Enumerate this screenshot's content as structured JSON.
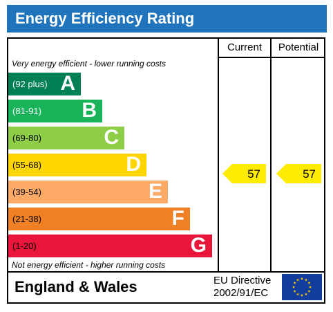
{
  "title": "Energy Efficiency Rating",
  "columns": {
    "current": "Current",
    "potential": "Potential"
  },
  "notes": {
    "top": "Very energy efficient - lower running costs",
    "bottom": "Not energy efficient - higher running costs"
  },
  "bands": [
    {
      "range": "(92 plus)",
      "letter": "A",
      "color": "#008054"
    },
    {
      "range": "(81-91)",
      "letter": "B",
      "color": "#19b459"
    },
    {
      "range": "(69-80)",
      "letter": "C",
      "color": "#8dce46"
    },
    {
      "range": "(55-68)",
      "letter": "D",
      "color": "#ffd500"
    },
    {
      "range": "(39-54)",
      "letter": "E",
      "color": "#fcaa65"
    },
    {
      "range": "(21-38)",
      "letter": "F",
      "color": "#ef8023"
    },
    {
      "range": "(1-20)",
      "letter": "G",
      "color": "#e9153b"
    }
  ],
  "ratings": {
    "current": "57",
    "potential": "57",
    "arrow_color": "#ffec00"
  },
  "footer": {
    "region": "England & Wales",
    "directive_line1": "EU Directive",
    "directive_line2": "2002/91/EC"
  },
  "colors": {
    "title_bar": "#1f74bb",
    "eu_flag_blue": "#123d9e",
    "eu_flag_stars": "#ffcc00"
  }
}
